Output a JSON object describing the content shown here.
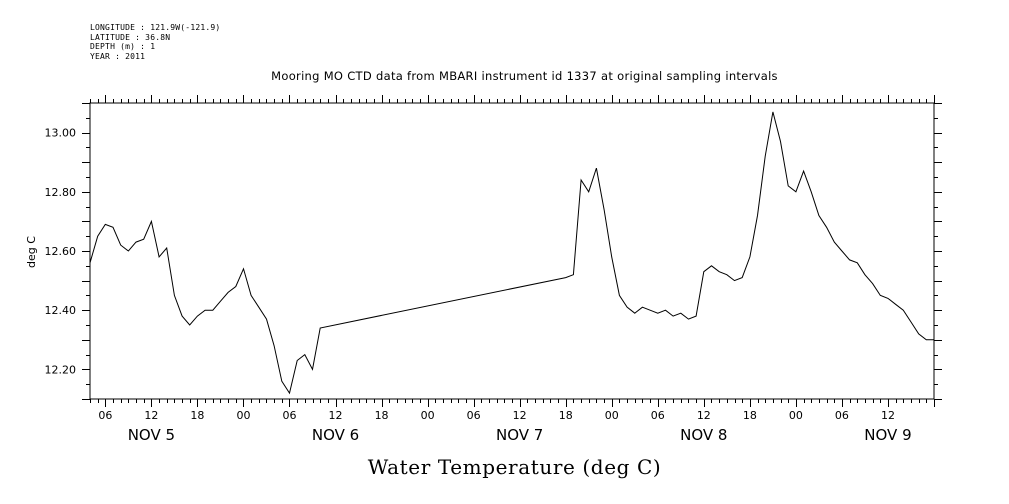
{
  "header": {
    "longitude": "LONGITUDE : 121.9W(-121.9)",
    "latitude": "LATITUDE : 36.8N",
    "depth": "DEPTH (m) : 1",
    "year": "YEAR : 2011"
  },
  "chart_data": {
    "type": "line",
    "title": "Mooring MO CTD data from MBARI instrument id 1337 at original sampling intervals",
    "xlabel": "Water Temperature (deg C)",
    "ylabel": "deg C",
    "ylim": [
      12.1,
      13.1
    ],
    "xlim": [
      "2011-11-05 04:00",
      "2011-11-09 18:00"
    ],
    "y_ticks": [
      "12.20",
      "12.40",
      "12.60",
      "12.80",
      "13.00"
    ],
    "x_hour_ticks": [
      "06",
      "12",
      "18",
      "00",
      "06",
      "12",
      "18",
      "00",
      "06",
      "12",
      "18",
      "00",
      "06",
      "12",
      "18",
      "00",
      "06",
      "12"
    ],
    "x_day_labels": [
      "NOV  5",
      "NOV  6",
      "NOV  7",
      "NOV  8",
      "NOV  9"
    ],
    "grid": false,
    "legend": "none",
    "series": [
      {
        "x": [
          "2011-11-05 04:00",
          "2011-11-05 05:00",
          "2011-11-05 06:00",
          "2011-11-05 07:00",
          "2011-11-05 08:00",
          "2011-11-05 09:00",
          "2011-11-05 10:00",
          "2011-11-05 11:00",
          "2011-11-05 12:00",
          "2011-11-05 13:00",
          "2011-11-05 14:00",
          "2011-11-05 15:00",
          "2011-11-05 16:00",
          "2011-11-05 17:00",
          "2011-11-05 18:00",
          "2011-11-05 19:00",
          "2011-11-05 20:00",
          "2011-11-05 21:00",
          "2011-11-05 22:00",
          "2011-11-05 23:00",
          "2011-11-06 00:00",
          "2011-11-06 01:00",
          "2011-11-06 02:00",
          "2011-11-06 03:00",
          "2011-11-06 04:00",
          "2011-11-06 05:00",
          "2011-11-06 06:00",
          "2011-11-06 07:00",
          "2011-11-06 08:00",
          "2011-11-06 09:00",
          "2011-11-06 10:00",
          "2011-11-07 18:00",
          "2011-11-07 19:00",
          "2011-11-07 20:00",
          "2011-11-07 21:00",
          "2011-11-07 22:00",
          "2011-11-07 23:00",
          "2011-11-08 00:00",
          "2011-11-08 01:00",
          "2011-11-08 02:00",
          "2011-11-08 03:00",
          "2011-11-08 04:00",
          "2011-11-08 05:00",
          "2011-11-08 06:00",
          "2011-11-08 07:00",
          "2011-11-08 08:00",
          "2011-11-08 09:00",
          "2011-11-08 10:00",
          "2011-11-08 11:00",
          "2011-11-08 12:00",
          "2011-11-08 13:00",
          "2011-11-08 14:00",
          "2011-11-08 15:00",
          "2011-11-08 16:00",
          "2011-11-08 17:00",
          "2011-11-08 18:00",
          "2011-11-08 19:00",
          "2011-11-08 20:00",
          "2011-11-08 21:00",
          "2011-11-08 22:00",
          "2011-11-08 23:00",
          "2011-11-09 00:00",
          "2011-11-09 01:00",
          "2011-11-09 02:00",
          "2011-11-09 03:00",
          "2011-11-09 04:00",
          "2011-11-09 05:00",
          "2011-11-09 06:00",
          "2011-11-09 07:00",
          "2011-11-09 08:00",
          "2011-11-09 09:00",
          "2011-11-09 10:00",
          "2011-11-09 11:00",
          "2011-11-09 12:00",
          "2011-11-09 13:00",
          "2011-11-09 14:00",
          "2011-11-09 15:00",
          "2011-11-09 16:00",
          "2011-11-09 17:00",
          "2011-11-09 18:00"
        ],
        "values": [
          12.56,
          12.65,
          12.69,
          12.68,
          12.62,
          12.6,
          12.63,
          12.64,
          12.7,
          12.58,
          12.61,
          12.45,
          12.38,
          12.35,
          12.38,
          12.4,
          12.4,
          12.43,
          12.46,
          12.48,
          12.54,
          12.45,
          12.41,
          12.37,
          12.28,
          12.16,
          12.12,
          12.23,
          12.25,
          12.2,
          12.34,
          12.51,
          12.52,
          12.84,
          12.8,
          12.88,
          12.74,
          12.58,
          12.45,
          12.41,
          12.39,
          12.41,
          12.4,
          12.39,
          12.4,
          12.38,
          12.39,
          12.37,
          12.38,
          12.53,
          12.55,
          12.53,
          12.52,
          12.5,
          12.51,
          12.58,
          12.72,
          12.92,
          13.07,
          12.97,
          12.82,
          12.8,
          12.87,
          12.8,
          12.72,
          12.68,
          12.63,
          12.6,
          12.57,
          12.56,
          12.52,
          12.49,
          12.45,
          12.44,
          12.42,
          12.4,
          12.36,
          12.32,
          12.3,
          12.3
        ]
      }
    ]
  }
}
